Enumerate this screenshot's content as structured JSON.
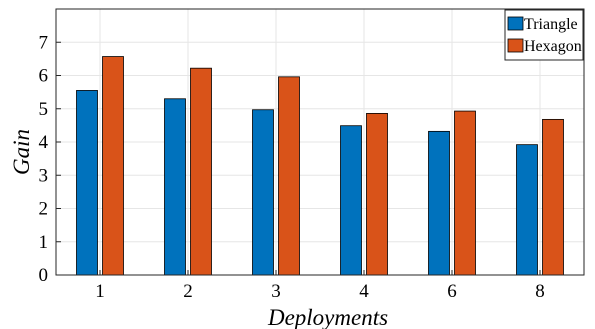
{
  "chart_data": {
    "type": "bar",
    "categories": [
      "1",
      "2",
      "3",
      "4",
      "6",
      "8"
    ],
    "series": [
      {
        "name": "Triangle",
        "color": "#0072BD",
        "values": [
          5.55,
          5.3,
          4.97,
          4.49,
          4.32,
          3.92
        ]
      },
      {
        "name": "Hexagon",
        "color": "#D95319",
        "values": [
          6.57,
          6.22,
          5.96,
          4.86,
          4.93,
          4.68
        ]
      }
    ],
    "xlabel": "Deployments",
    "ylabel": "Gain",
    "ylim": [
      0,
      8
    ],
    "yticks": [
      "0",
      "1",
      "2",
      "3",
      "4",
      "5",
      "6",
      "7"
    ],
    "grid": true,
    "legend_position": "top-right"
  }
}
